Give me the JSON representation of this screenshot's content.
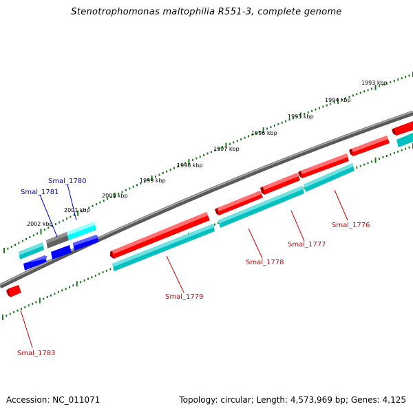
{
  "title": "Stenotrophomonas maltophilia R551-3, complete genome",
  "footer": {
    "accession": "Accession: NC_011071",
    "stats": "Topology: circular; Length: 4,573,969 bp; Genes: 4,125"
  },
  "colors": {
    "reverse_strand_gene": "#ff0000",
    "forward_strand_gene": "#00c0c0",
    "blue_gene": "#0000ff",
    "cyan_gene": "#00ffff",
    "gray_gene": "#606060",
    "label_red": "#cc0000",
    "label_blue": "#0000cc",
    "tick_green": "#1a7a1a",
    "backbone": "#808080"
  },
  "ruler_labels": [
    "1993 kbp",
    "1994 kbp",
    "1995 kbp",
    "1996 kbp",
    "1997 kbp",
    "1998 kbp",
    "1999 kbp",
    "2000 kbp",
    "2001 kbp",
    "2002 kbp"
  ],
  "gene_labels": [
    {
      "text": "Smal_1776",
      "color": "red"
    },
    {
      "text": "Smal_1777",
      "color": "red"
    },
    {
      "text": "Smal_1778",
      "color": "red"
    },
    {
      "text": "Smal_1779",
      "color": "red"
    },
    {
      "text": "Smal_1780",
      "color": "blue"
    },
    {
      "text": "Smal_1781",
      "color": "blue"
    },
    {
      "text": "Smal_1783",
      "color": "red"
    }
  ]
}
